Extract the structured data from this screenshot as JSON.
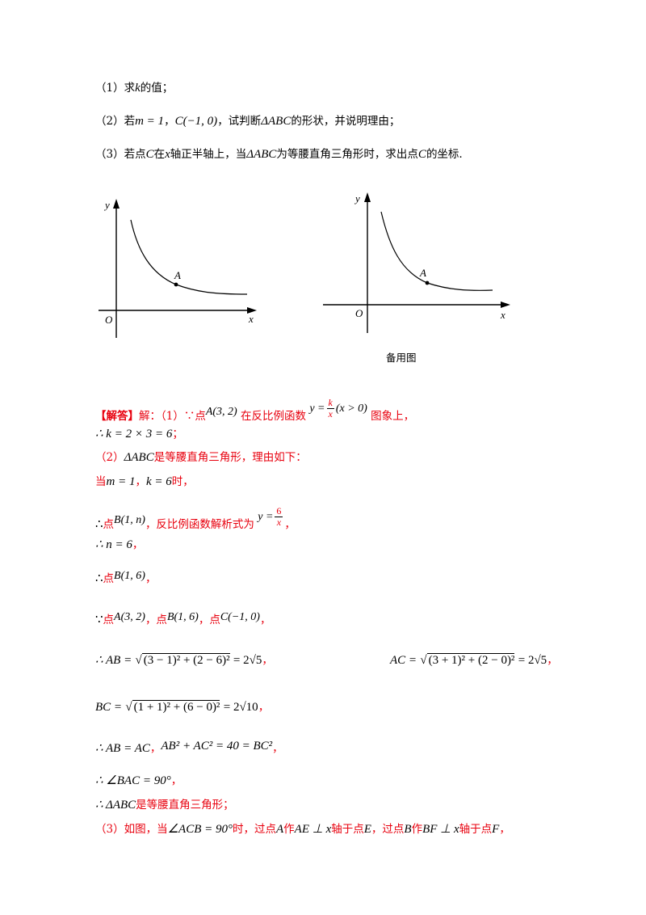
{
  "questions": {
    "q1": {
      "pre": "（1）求",
      "var": "k",
      "post": "的值；"
    },
    "q2": {
      "pre": "（2）若",
      "m_eq": "m = 1",
      "comma": "，",
      "c_point": "C(−1, 0)",
      "mid": "，试判断",
      "tri": "ΔABC",
      "post": "的形状，并说明理由；"
    },
    "q3": {
      "pre": "（3）若点",
      "c": "C",
      "mid1": "在",
      "x": "x",
      "mid2": "轴正半轴上，当",
      "tri": "ΔABC",
      "mid3": "为等腰直角三角形时，求出点",
      "c2": "C",
      "post": "的坐标."
    }
  },
  "figures": {
    "left": {
      "y_label": "y",
      "x_label": "x",
      "origin_label": "O",
      "point_label": "A"
    },
    "right": {
      "y_label": "y",
      "x_label": "x",
      "origin_label": "O",
      "point_label": "A",
      "caption": "备用图"
    }
  },
  "solution": {
    "header": "【解答】",
    "l1_a": "解：（1）∵点",
    "l1_point": "A(3, 2)",
    "l1_b": "在反比例函数",
    "l1_func_y": "y =",
    "l1_num": "k",
    "l1_den": "x",
    "l1_cond": "(x > 0)",
    "l1_c": "图象上，",
    "l2_math": "∴ k = 2 × 3 = 6",
    "l2_end": "；",
    "l3_a": "（2）",
    "l3_tri": "ΔABC",
    "l3_b": "是等腰直角三角形，理由如下：",
    "l4_a": "当",
    "l4_m": "m = 1",
    "l4_comma": "，",
    "l4_k": "k = 6",
    "l4_b": "时，",
    "l5_therefore": "∴",
    "l5_a": "点",
    "l5_point": "B(1, n)",
    "l5_b": "，反比例函数解析式为",
    "l5_y": "y =",
    "l5_num": "6",
    "l5_den": "x",
    "l5_c": "，",
    "l6_math": "∴ n = 6",
    "l6_end": "，",
    "l7_therefore": "∴",
    "l7_a": "点",
    "l7_point": "B(1, 6)",
    "l7_end": "，",
    "l8_because": "∵",
    "l8_a": "点",
    "l8_pa": "A(3, 2)",
    "l8_b": "，点",
    "l8_pb": "B(1, 6)",
    "l8_c": "，点",
    "l8_pc": "C(−1, 0)",
    "l8_end": "，",
    "l9_lhs": "∴ AB =",
    "l9_rad": "(3 − 1)² + (2 − 6)²",
    "l9_rhs": "= 2√5",
    "l9_end": "，",
    "l9b_lhs": "AC =",
    "l9b_rad": "(3 + 1)² + (2 − 0)²",
    "l9b_rhs": "= 2√5",
    "l9b_end": "，",
    "l10_lhs": "BC =",
    "l10_rad": "(1 + 1)² + (6 − 0)²",
    "l10_rhs": "= 2√10",
    "l10_end": "，",
    "l11_a": "∴ AB = AC",
    "l11_comma": "，",
    "l11_b": "AB² + AC² = 40 = BC²",
    "l11_end": "，",
    "l12_math": "∴ ∠BAC = 90°",
    "l12_end": "，",
    "l13_a": "∴ ΔABC",
    "l13_b": "是等腰直角三角形；",
    "l14_a": "（3）如图，当",
    "l14_angle": "∠ACB = 90°",
    "l14_b": "时，过点",
    "l14_A": "A",
    "l14_c": "作",
    "l14_ae": "AE ⊥ x",
    "l14_d": "轴于点",
    "l14_E": "E",
    "l14_e": "，过点",
    "l14_B": "B",
    "l14_f": "作",
    "l14_bf": "BF ⊥ x",
    "l14_g": "轴于点",
    "l14_F": "F",
    "l14_h": "，"
  }
}
